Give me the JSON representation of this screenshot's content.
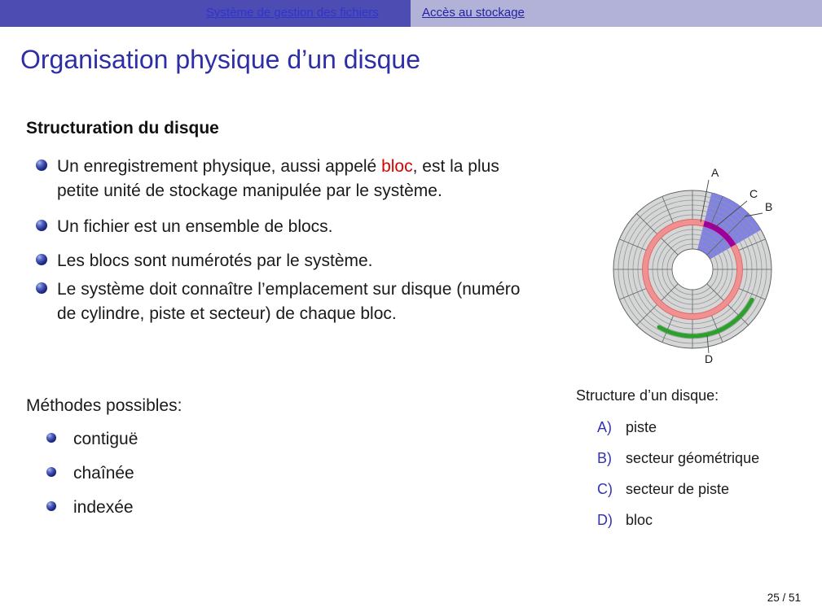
{
  "header": {
    "tabs": [
      {
        "label": "Système de gestion des fichiers"
      },
      {
        "label": "Accès au stockage"
      }
    ]
  },
  "title": "Organisation physique d’un disque",
  "section": {
    "heading": "Structuration du disque",
    "bullets": [
      {
        "pre": "Un enregistrement physique, aussi appelé ",
        "highlight": "bloc",
        "post": ", est la plus\npetite unité de stockage manipulée par le système."
      },
      {
        "text": "Un fichier est un ensemble de blocs."
      },
      {
        "text": "Les blocs sont numérotés par le système."
      },
      {
        "text": "Le système doit connaître l’emplacement sur disque (numéro\nde cylindre, piste et secteur) de chaque bloc."
      }
    ]
  },
  "methods": {
    "heading": "Méthodes possibles:",
    "items": [
      "contiguë",
      "chaînée",
      "indexée"
    ]
  },
  "legend": {
    "heading": "Structure d’un disque:",
    "items": [
      {
        "key": "A)",
        "label": "piste"
      },
      {
        "key": "B)",
        "label": "secteur géométrique"
      },
      {
        "key": "C)",
        "label": "secteur de piste"
      },
      {
        "key": "D)",
        "label": "bloc"
      }
    ]
  },
  "diagram": {
    "labels": [
      "A",
      "B",
      "C",
      "D"
    ],
    "colors": {
      "disk": "#d6d6d6",
      "grid": "#8f9898",
      "grid_dark": "#5f6565",
      "track": "#f09090",
      "track_edge": "#d96868",
      "sector": "#8282e4",
      "track_sector": "#9c009c",
      "cluster": "#2aa12a",
      "label_text": "#1a1a1a"
    }
  },
  "footer": {
    "page": "25 / 51"
  },
  "colors": {
    "bar_dark": "#4c4cb2",
    "bar_light": "#b2b2d8",
    "link_on_dark": "#3333cc",
    "link_on_light": "#2222a2",
    "title_blue": "#2e2ea6",
    "enum_blue": "#3333b3",
    "highlight_red": "#dd0000"
  }
}
